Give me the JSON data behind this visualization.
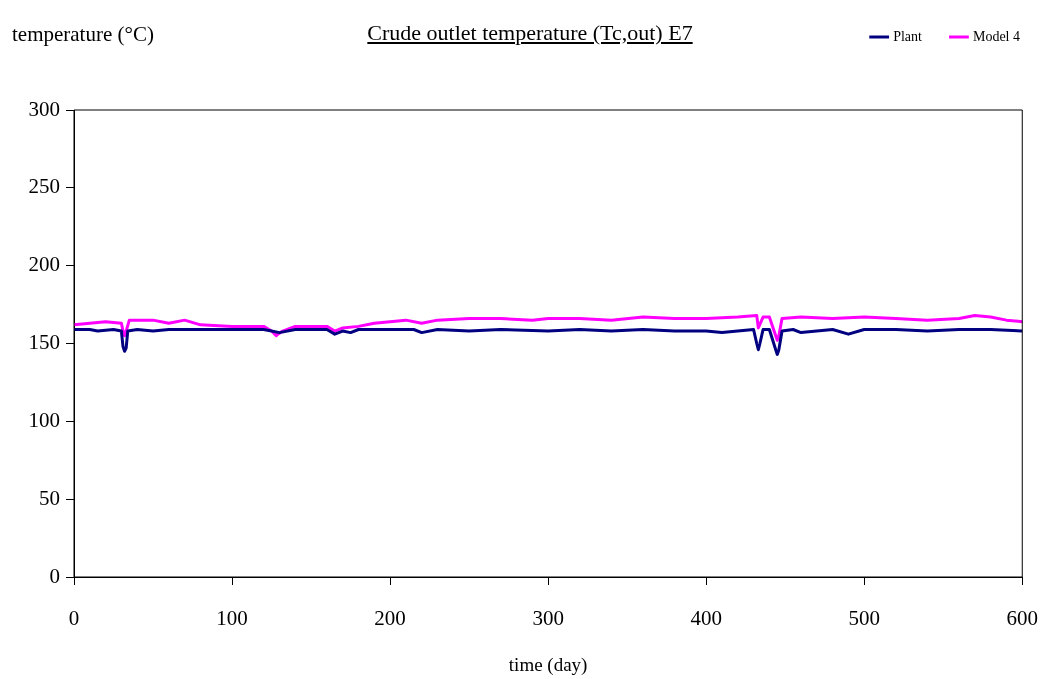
{
  "chart_data": {
    "type": "line",
    "title": "Crude outlet temperature (Tc,out) E7",
    "xlabel": "time (day)",
    "ylabel": "temperature (°C)",
    "xlim": [
      0,
      600
    ],
    "xticks": [
      0,
      100,
      200,
      300,
      400,
      500,
      600
    ],
    "ylim": [
      0,
      300
    ],
    "yticks": [
      0,
      50,
      100,
      150,
      200,
      250,
      300
    ],
    "grid": false,
    "legend": "top right",
    "marker": "none",
    "series": [
      {
        "name": "Plant",
        "color": "#000080",
        "x": [
          0,
          10,
          15,
          25,
          30,
          31,
          32,
          33,
          34,
          40,
          50,
          60,
          80,
          100,
          120,
          125,
          130,
          140,
          160,
          165,
          170,
          175,
          180,
          200,
          215,
          220,
          230,
          250,
          270,
          300,
          320,
          340,
          360,
          380,
          400,
          410,
          420,
          430,
          432,
          433,
          434,
          436,
          440,
          444,
          445,
          446,
          448,
          455,
          460,
          480,
          490,
          500,
          520,
          540,
          560,
          580,
          600
        ],
        "values": [
          159,
          159,
          158,
          159,
          158,
          148,
          145,
          147,
          158,
          159,
          158,
          159,
          159,
          159,
          159,
          158,
          157,
          159,
          159,
          156,
          158,
          157,
          159,
          159,
          159,
          157,
          159,
          158,
          159,
          158,
          159,
          158,
          159,
          158,
          158,
          157,
          158,
          159,
          150,
          146,
          150,
          159,
          159,
          146,
          143,
          146,
          158,
          159,
          157,
          159,
          156,
          159,
          159,
          158,
          159,
          159,
          158
        ]
      },
      {
        "name": "Model 4",
        "color": "#ff00ff",
        "x": [
          0,
          10,
          20,
          30,
          31,
          32,
          33,
          35,
          50,
          60,
          70,
          80,
          100,
          120,
          125,
          127,
          128,
          129,
          132,
          140,
          160,
          165,
          170,
          180,
          190,
          200,
          210,
          220,
          230,
          250,
          270,
          290,
          300,
          320,
          340,
          360,
          380,
          400,
          420,
          432,
          433,
          436,
          440,
          444,
          445,
          446,
          448,
          460,
          480,
          500,
          520,
          540,
          560,
          570,
          580,
          590,
          600
        ],
        "values": [
          162,
          163,
          164,
          163,
          158,
          155,
          158,
          165,
          165,
          163,
          165,
          162,
          161,
          161,
          158,
          156,
          155,
          156,
          158,
          161,
          161,
          158,
          160,
          161,
          163,
          164,
          165,
          163,
          165,
          166,
          166,
          165,
          166,
          166,
          165,
          167,
          166,
          166,
          167,
          168,
          160,
          167,
          167,
          155,
          152,
          155,
          166,
          167,
          166,
          167,
          166,
          165,
          166,
          168,
          167,
          165,
          164
        ]
      }
    ]
  }
}
